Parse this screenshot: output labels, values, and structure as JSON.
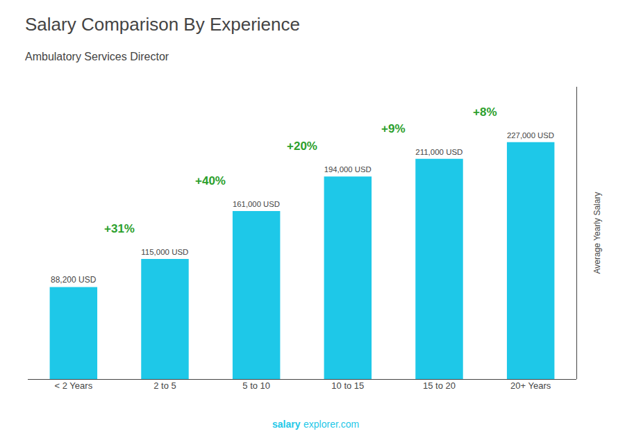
{
  "chart_data": {
    "type": "bar",
    "title": "Salary Comparison By Experience",
    "subtitle": "Ambulatory Services Director",
    "ylabel": "Average Yearly Salary",
    "categories": [
      "< 2 Years",
      "2 to 5",
      "5 to 10",
      "10 to 15",
      "15 to 20",
      "20+ Years"
    ],
    "values": [
      88200,
      115000,
      161000,
      194000,
      211000,
      227000
    ],
    "value_labels": [
      "88,200 USD",
      "115,000 USD",
      "161,000 USD",
      "194,000 USD",
      "211,000 USD",
      "227,000 USD"
    ],
    "data_labels": true,
    "color": "#1ec8e8",
    "annotations": [
      "+31%",
      "+40%",
      "+20%",
      "+9%",
      "+8%"
    ],
    "footer": [
      "salary",
      "explorer.com"
    ],
    "ylim": [
      0,
      280000
    ],
    "tick_labels": "x",
    "grid": false
  }
}
